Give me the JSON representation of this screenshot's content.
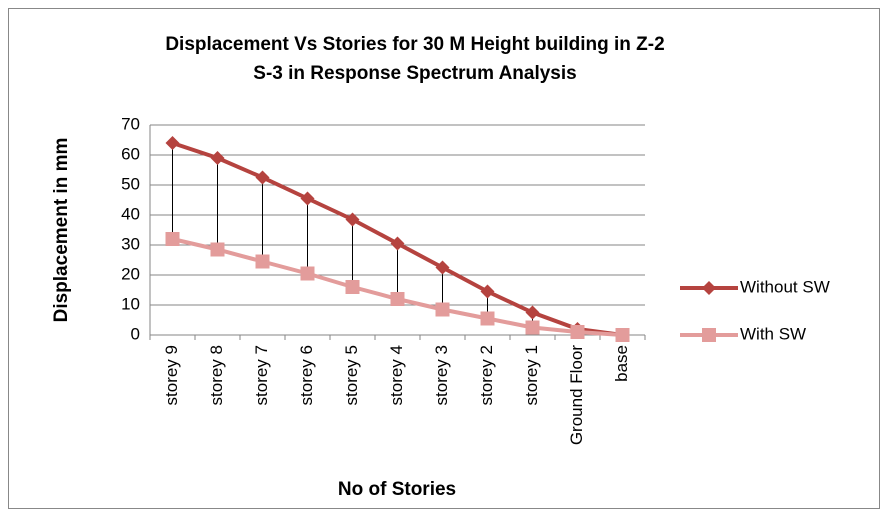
{
  "chart_data": {
    "type": "line",
    "title": [
      "Displacement Vs Stories for 30 M Height building in Z-2",
      "S-3 in Response Spectrum Analysis"
    ],
    "x_label": "No of Stories",
    "y_label": "Displacement in mm",
    "categories": [
      "storey 9",
      "storey 8",
      "storey 7",
      "storey 6",
      "storey 5",
      "storey 4",
      "storey 3",
      "storey 2",
      "storey 1",
      "Ground Floor",
      "base"
    ],
    "series": [
      {
        "name": "Without SW",
        "color": "#b5433f",
        "marker": "diamond",
        "values": [
          64,
          59,
          52.5,
          45.5,
          38.5,
          30.5,
          22.5,
          14.5,
          7.5,
          2,
          0
        ]
      },
      {
        "name": "With SW",
        "color": "#e39c9b",
        "marker": "square",
        "values": [
          32,
          28.5,
          24.5,
          20.5,
          16,
          12,
          8.5,
          5.5,
          2.5,
          1,
          0
        ]
      }
    ],
    "ylim": [
      0,
      70
    ],
    "yticks": [
      0,
      10,
      20,
      30,
      40,
      50,
      60,
      70
    ],
    "grid": true,
    "high_low_lines": true,
    "legend": "right"
  }
}
